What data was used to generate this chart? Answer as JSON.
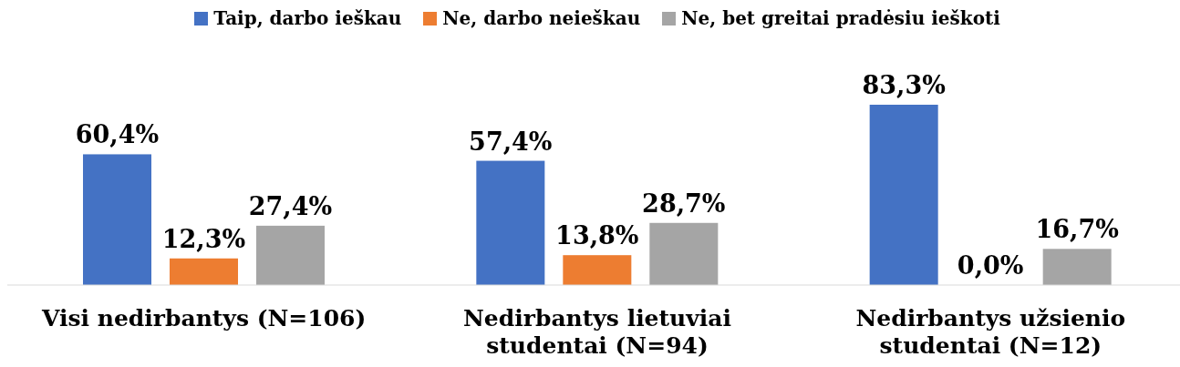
{
  "chart_data": {
    "type": "bar",
    "categories": [
      "Visi nedirbantys (N=106)",
      "Nedirbantys lietuviai studentai (N=94)",
      "Nedirbantys užsienio studentai (N=12)"
    ],
    "series": [
      {
        "name": "Taip, darbo ieškau",
        "color": "#4472c4",
        "values": [
          60.4,
          57.4,
          83.3
        ],
        "value_labels": [
          "60,4%",
          "57,4%",
          "83,3%"
        ]
      },
      {
        "name": "Ne, darbo neieškau",
        "color": "#ed7d31",
        "values": [
          12.3,
          13.8,
          0.0
        ],
        "value_labels": [
          "12,3%",
          "13,8%",
          "0,0%"
        ]
      },
      {
        "name": "Ne, bet greitai pradėsiu ieškoti",
        "color": "#a5a5a5",
        "values": [
          27.4,
          28.7,
          16.7
        ],
        "value_labels": [
          "27,4%",
          "28,7%",
          "16,7%"
        ]
      }
    ],
    "legend": "top",
    "grid": false
  }
}
